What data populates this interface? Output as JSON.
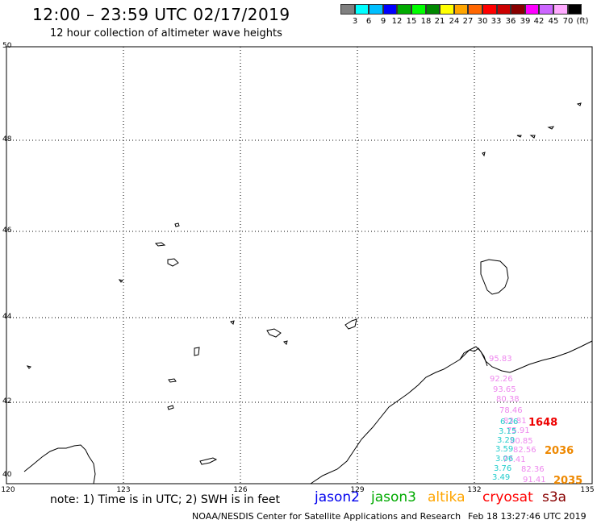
{
  "header": {
    "title": "12:00 – 23:59 UTC 02/17/2019",
    "subtitle": "12 hour collection of altimeter wave heights"
  },
  "colorbar": {
    "colors": [
      "#808080",
      "#00ffff",
      "#00bfff",
      "#0000ff",
      "#00aa00",
      "#00ff00",
      "#008800",
      "#ffff00",
      "#ffa500",
      "#ff6600",
      "#ff0000",
      "#cc0000",
      "#880000",
      "#ff00ff",
      "#cc66ff",
      "#ffaaff",
      "#000000"
    ],
    "labels": [
      "3",
      "6",
      "9",
      "12",
      "15",
      "18",
      "21",
      "24",
      "27",
      "30",
      "33",
      "36",
      "39",
      "42",
      "45",
      "70",
      "(ft)"
    ]
  },
  "map": {
    "lat_labels": [
      "50",
      "48",
      "46",
      "44",
      "42",
      "40"
    ],
    "lon_labels": [
      "120",
      "123",
      "126",
      "129",
      "132",
      "135"
    ]
  },
  "readings": {
    "cyan": [
      "6.26",
      "3.15",
      "3.29",
      "3.59",
      "3.06",
      "3.76",
      "3.49"
    ],
    "pink": [
      "95.83",
      "92.26",
      "93.65",
      "80.38",
      "78.46",
      "83.81",
      "75.91",
      "80.85",
      "82.56",
      "77.41",
      "82.36",
      "91.41"
    ],
    "big": [
      "1648",
      "2036",
      "2035"
    ]
  },
  "footer": {
    "note": "note: 1) Time is in UTC; 2) SWH is in feet",
    "sats": [
      {
        "name": "jason2",
        "color": "#0000ee"
      },
      {
        "name": "jason3",
        "color": "#00aa00"
      },
      {
        "name": "altika",
        "color": "#ffa500"
      },
      {
        "name": "cryosat",
        "color": "#ff0000"
      },
      {
        "name": "s3a",
        "color": "#880000"
      }
    ],
    "credit": "NOAA/NESDIS Center for Satellite Applications and Research",
    "timestamp": "Feb 18 13:27:46 UTC 2019"
  }
}
